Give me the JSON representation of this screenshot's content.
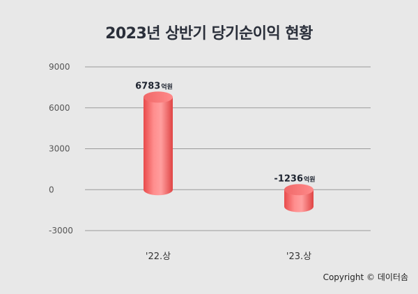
{
  "title": "2023년 상반기 당기순이익 현황",
  "copyright": "Copyright © 데이터솜",
  "colors": {
    "bar": "#f45a5a",
    "bar_light": "#ff9a9a",
    "bar_dark": "#d83c3c",
    "grid": "#9a9a9a",
    "axis_text": "#555555"
  },
  "chart_data": {
    "type": "bar",
    "categories": [
      "'22.상",
      "'23.상"
    ],
    "values": [
      6783,
      -1236
    ],
    "data_labels": [
      {
        "value": "6783",
        "unit": "억원"
      },
      {
        "value": "-1236",
        "unit": "억원"
      }
    ],
    "yticks": [
      "9000",
      "6000",
      "3000",
      "0",
      "-3000"
    ],
    "ylim": [
      -3000,
      9000
    ],
    "grid": true,
    "title": "2023년 상반기 당기순이익 현황"
  }
}
